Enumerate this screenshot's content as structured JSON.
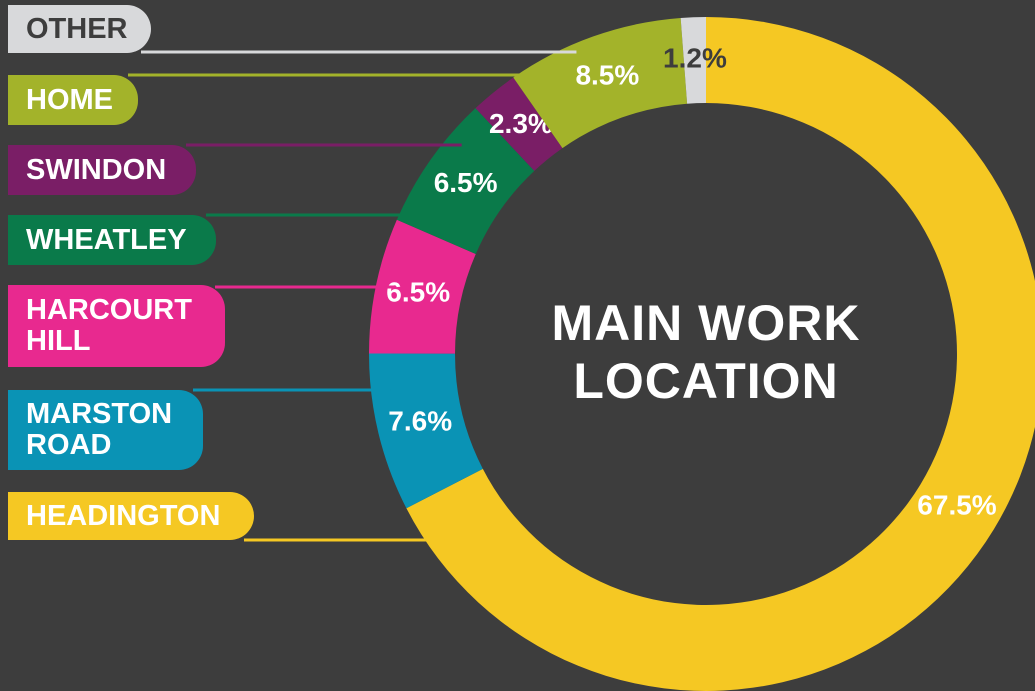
{
  "chart_data": {
    "type": "donut",
    "title": "MAIN WORK LOCATION",
    "categories": [
      "HEADINGTON",
      "MARSTON ROAD",
      "HARCOURT HILL",
      "WHEATLEY",
      "SWINDON",
      "HOME",
      "OTHER"
    ],
    "values": [
      67.5,
      7.6,
      6.5,
      6.5,
      2.3,
      8.5,
      1.2
    ],
    "value_labels": [
      "67.5%",
      "7.6%",
      "6.5%",
      "6.5%",
      "2.3%",
      "8.5%",
      "1.2%"
    ],
    "colors": [
      "#f5c823",
      "#0a93b5",
      "#e8298f",
      "#0a7a4a",
      "#7a1e66",
      "#a3b32a",
      "#d8d9db"
    ]
  }
}
